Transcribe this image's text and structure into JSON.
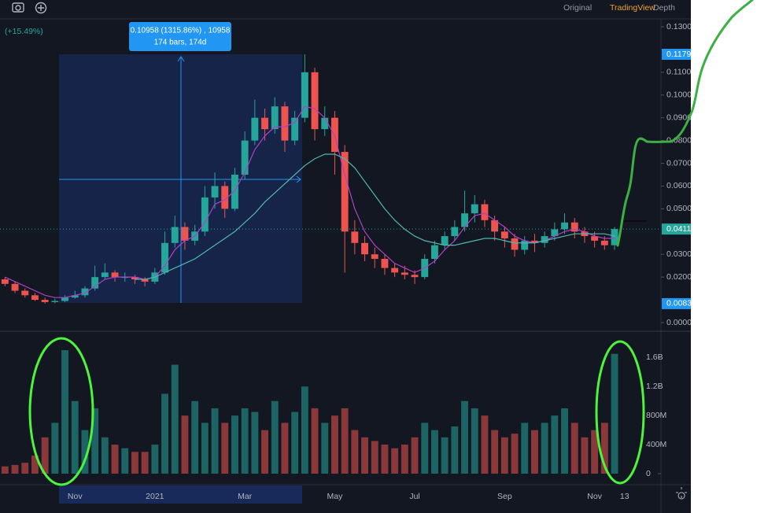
{
  "toolbar": {
    "tabs": [
      "Original",
      "TradingView",
      "Depth"
    ],
    "active": 1,
    "active_color": "#f0a030"
  },
  "chart_data": {
    "type": "candlestick",
    "change_label": "(+15.49%)",
    "measure": {
      "label": "0.10958 (1315.86%) , 10958",
      "detail": "174 bars, 174d"
    },
    "categories": [
      null,
      null,
      null,
      null,
      null,
      null,
      null,
      "Nov",
      null,
      null,
      null,
      null,
      null,
      null,
      null,
      "2021",
      null,
      null,
      null,
      null,
      null,
      null,
      null,
      null,
      "Mar",
      null,
      null,
      null,
      null,
      null,
      null,
      null,
      null,
      "May",
      null,
      null,
      null,
      null,
      null,
      null,
      null,
      "Jul",
      null,
      null,
      null,
      null,
      null,
      null,
      null,
      null,
      "Sep",
      null,
      null,
      null,
      null,
      null,
      null,
      null,
      null,
      "Nov",
      null,
      null,
      "13"
    ],
    "open": [
      0.019,
      0.017,
      0.014,
      0.012,
      0.01,
      0.009,
      0.0095,
      0.011,
      0.012,
      0.015,
      0.02,
      0.022,
      0.02,
      0.02,
      0.019,
      0.018,
      0.022,
      0.035,
      0.042,
      0.036,
      0.04,
      0.055,
      0.06,
      0.05,
      0.065,
      0.08,
      0.09,
      0.085,
      0.095,
      0.08,
      0.09,
      0.11,
      0.085,
      0.09,
      0.075,
      0.04,
      0.035,
      0.03,
      0.028,
      0.024,
      0.022,
      0.021,
      0.02,
      0.028,
      0.034,
      0.038,
      0.042,
      0.048,
      0.052,
      0.045,
      0.04,
      0.037,
      0.032,
      0.036,
      0.035,
      0.038,
      0.041,
      0.044,
      0.04,
      0.038,
      0.036,
      0.034,
      null
    ],
    "high": [
      0.02,
      0.018,
      0.015,
      0.013,
      0.011,
      0.0105,
      0.012,
      0.014,
      0.016,
      0.025,
      0.026,
      0.023,
      0.022,
      0.021,
      0.02,
      0.024,
      0.04,
      0.047,
      0.044,
      0.043,
      0.06,
      0.066,
      0.062,
      0.068,
      0.084,
      0.098,
      0.094,
      0.099,
      0.097,
      0.093,
      0.1179,
      0.112,
      0.095,
      0.093,
      0.078,
      0.045,
      0.038,
      0.033,
      0.03,
      0.026,
      0.025,
      0.023,
      0.03,
      0.036,
      0.04,
      0.045,
      0.058,
      0.056,
      0.054,
      0.047,
      0.042,
      0.039,
      0.038,
      0.039,
      0.04,
      0.044,
      0.048,
      0.046,
      0.042,
      0.04,
      0.038,
      0.042,
      null
    ],
    "low": [
      0.016,
      0.013,
      0.011,
      0.0095,
      0.00833,
      0.0085,
      0.009,
      0.0105,
      0.011,
      0.014,
      0.019,
      0.018,
      0.018,
      0.017,
      0.016,
      0.017,
      0.021,
      0.033,
      0.032,
      0.034,
      0.038,
      0.05,
      0.046,
      0.049,
      0.063,
      0.078,
      0.08,
      0.083,
      0.075,
      0.078,
      0.088,
      0.08,
      0.082,
      0.065,
      0.022,
      0.03,
      0.027,
      0.024,
      0.021,
      0.02,
      0.019,
      0.017,
      0.019,
      0.026,
      0.032,
      0.036,
      0.04,
      0.044,
      0.042,
      0.036,
      0.033,
      0.029,
      0.03,
      0.031,
      0.033,
      0.036,
      0.039,
      0.037,
      0.035,
      0.033,
      0.032,
      0.032,
      null
    ],
    "close": [
      0.017,
      0.014,
      0.012,
      0.01,
      0.009,
      0.0095,
      0.011,
      0.012,
      0.015,
      0.02,
      0.022,
      0.02,
      0.02,
      0.019,
      0.018,
      0.022,
      0.035,
      0.042,
      0.036,
      0.04,
      0.055,
      0.06,
      0.05,
      0.065,
      0.08,
      0.09,
      0.085,
      0.095,
      0.08,
      0.09,
      0.11,
      0.085,
      0.09,
      0.075,
      0.04,
      0.035,
      0.03,
      0.028,
      0.024,
      0.022,
      0.021,
      0.02,
      0.028,
      0.034,
      0.038,
      0.042,
      0.048,
      0.052,
      0.045,
      0.04,
      0.037,
      0.032,
      0.036,
      0.035,
      0.038,
      0.041,
      0.044,
      0.04,
      0.038,
      0.036,
      0.034,
      0.0411,
      null
    ],
    "volume": [
      100000000,
      120000000,
      150000000,
      250000000,
      500000000,
      700000000,
      1700000000,
      1000000000,
      600000000,
      900000000,
      500000000,
      400000000,
      350000000,
      300000000,
      300000000,
      400000000,
      1100000000,
      1500000000,
      800000000,
      1000000000,
      700000000,
      900000000,
      700000000,
      800000000,
      900000000,
      850000000,
      600000000,
      1000000000,
      700000000,
      850000000,
      1200000000,
      900000000,
      700000000,
      800000000,
      900000000,
      600000000,
      500000000,
      450000000,
      400000000,
      350000000,
      400000000,
      500000000,
      700000000,
      600000000,
      500000000,
      650000000,
      1000000000,
      900000000,
      800000000,
      600000000,
      500000000,
      550000000,
      700000000,
      600000000,
      700000000,
      800000000,
      900000000,
      700000000,
      500000000,
      600000000,
      700000000,
      1650000000,
      null
    ],
    "up_color": "#26a69a",
    "down_color": "#ef5350",
    "series": [
      {
        "color": "#b040c8",
        "values": [
          0.02,
          0.018,
          0.016,
          0.014,
          0.012,
          0.011,
          0.011,
          0.012,
          0.013,
          0.016,
          0.019,
          0.02,
          0.02,
          0.02,
          0.019,
          0.02,
          0.025,
          0.032,
          0.036,
          0.038,
          0.044,
          0.052,
          0.054,
          0.058,
          0.066,
          0.076,
          0.082,
          0.086,
          0.086,
          0.088,
          0.095,
          0.094,
          0.09,
          0.082,
          0.065,
          0.05,
          0.04,
          0.034,
          0.03,
          0.026,
          0.024,
          0.022,
          0.024,
          0.027,
          0.032,
          0.036,
          0.042,
          0.047,
          0.048,
          0.045,
          0.042,
          0.038,
          0.036,
          0.035,
          0.036,
          0.038,
          0.04,
          0.041,
          0.04,
          0.038,
          0.037,
          0.037,
          null
        ]
      },
      {
        "color": "#4fb8b0",
        "values": [
          null,
          null,
          null,
          null,
          null,
          null,
          null,
          null,
          null,
          null,
          null,
          null,
          null,
          0.019,
          0.019,
          0.02,
          0.022,
          0.024,
          0.026,
          0.028,
          0.031,
          0.034,
          0.037,
          0.04,
          0.044,
          0.048,
          0.053,
          0.057,
          0.061,
          0.065,
          0.069,
          0.072,
          0.074,
          0.074,
          0.072,
          0.068,
          0.062,
          0.056,
          0.05,
          0.045,
          0.041,
          0.038,
          0.036,
          0.035,
          0.034,
          0.034,
          0.035,
          0.036,
          0.037,
          0.037,
          0.036,
          0.035,
          0.035,
          0.035,
          0.036,
          0.037,
          0.038,
          0.039,
          0.039,
          0.039,
          0.039,
          0.038,
          null
        ]
      }
    ],
    "ylim": [
      0,
      0.13
    ],
    "yticks": [
      {
        "value": 0,
        "label": "0.00000"
      },
      {
        "value": 0.02,
        "label": "0.02000"
      },
      {
        "value": 0.03,
        "label": "0.03000"
      },
      {
        "value": 0.05,
        "label": "0.05000"
      },
      {
        "value": 0.06,
        "label": "0.06000"
      },
      {
        "value": 0.07,
        "label": "0.07000"
      },
      {
        "value": 0.08,
        "label": "0.08000"
      },
      {
        "value": 0.09,
        "label": "0.09000"
      },
      {
        "value": 0.1,
        "label": "0.10000"
      },
      {
        "value": 0.11,
        "label": "0.11000"
      },
      {
        "value": 0.13,
        "label": "0.13000"
      }
    ],
    "price_labels": [
      {
        "value": 0.1179,
        "label": "0.11790",
        "color": "#2196f3"
      },
      {
        "value": 0.0411,
        "label": "0.04115",
        "color": "#26a69a"
      },
      {
        "value": 0.00833,
        "label": "0.00833",
        "color": "#2196f3"
      }
    ],
    "volume_ylim": [
      0,
      1950000000
    ],
    "volume_yticks": [
      0,
      {
        "value": 400000000,
        "label": "400M"
      },
      {
        "value": 800000000,
        "label": "800M"
      },
      {
        "value": 1200000000,
        "label": "1.2B"
      },
      {
        "value": 1600000000,
        "label": "1.6B"
      }
    ]
  }
}
